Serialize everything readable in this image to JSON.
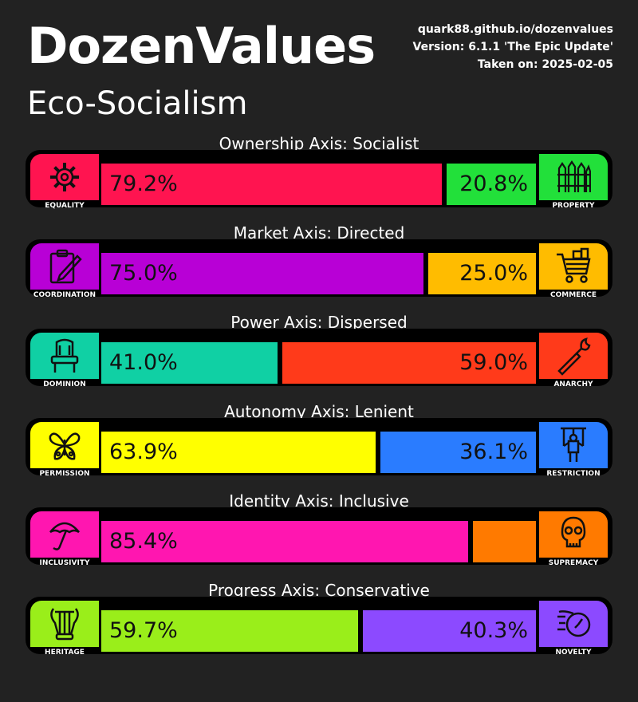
{
  "header": {
    "title": "DozenValues",
    "ideology": "Eco-Socialism",
    "site": "quark88.github.io/dozenvalues",
    "version": "Version: 6.1.1 'The Epic Update'",
    "taken": "Taken on: 2025-02-05"
  },
  "axes": [
    {
      "label": "Ownership Axis: Socialist",
      "left": {
        "name": "EQUALITY",
        "icon": "gear-icon",
        "color": "#ff1450",
        "value": 79.2,
        "text": "79.2%"
      },
      "right": {
        "name": "PROPERTY",
        "icon": "fence-icon",
        "color": "#22e03a",
        "value": 20.8,
        "text": "20.8%"
      }
    },
    {
      "label": "Market Axis: Directed",
      "left": {
        "name": "COORDINATION",
        "icon": "clipboard-pen-icon",
        "color": "#b800d6",
        "value": 75.0,
        "text": "75.0%"
      },
      "right": {
        "name": "COMMERCE",
        "icon": "shopping-cart-icon",
        "color": "#ffbc00",
        "value": 25.0,
        "text": "25.0%"
      }
    },
    {
      "label": "Power Axis: Dispersed",
      "left": {
        "name": "DOMINION",
        "icon": "throne-icon",
        "color": "#10d0a4",
        "value": 41.0,
        "text": "41.0%"
      },
      "right": {
        "name": "ANARCHY",
        "icon": "molotov-icon",
        "color": "#ff3a1a",
        "value": 59.0,
        "text": "59.0%"
      }
    },
    {
      "label": "Autonomy Axis: Lenient",
      "left": {
        "name": "PERMISSION",
        "icon": "butterfly-icon",
        "color": "#ffff00",
        "value": 63.9,
        "text": "63.9%"
      },
      "right": {
        "name": "RESTRICTION",
        "icon": "marionette-icon",
        "color": "#2a7cff",
        "value": 36.1,
        "text": "36.1%"
      }
    },
    {
      "label": "Identity Axis: Inclusive",
      "left": {
        "name": "INCLUSIVITY",
        "icon": "umbrella-icon",
        "color": "#ff16b0",
        "value": 85.4,
        "text": "85.4%"
      },
      "right": {
        "name": "SUPREMACY",
        "icon": "skull-icon",
        "color": "#ff7a00",
        "value": 14.6,
        "text": ""
      }
    },
    {
      "label": "Progress Axis: Conservative",
      "left": {
        "name": "HERITAGE",
        "icon": "lyre-icon",
        "color": "#9aee1a",
        "value": 59.7,
        "text": "59.7%"
      },
      "right": {
        "name": "NOVELTY",
        "icon": "stopwatch-icon",
        "color": "#8c4aff",
        "value": 40.3,
        "text": "40.3%"
      }
    }
  ]
}
